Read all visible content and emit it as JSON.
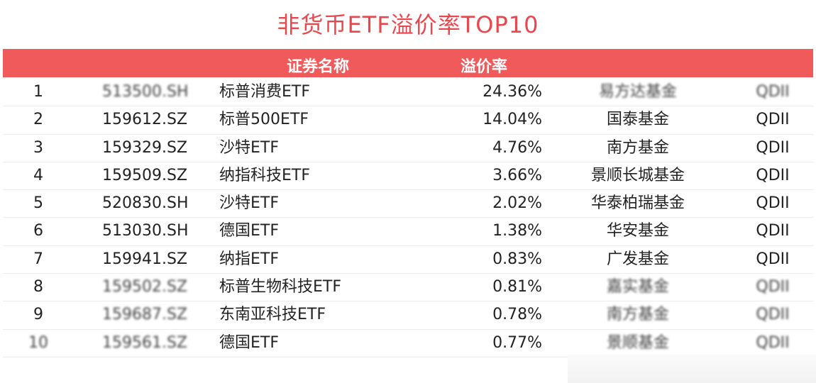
{
  "title": "非货币ETF溢价率TOP10",
  "header": {
    "name_label": "证券名称",
    "rate_label": "溢价率"
  },
  "chart_data": {
    "type": "table",
    "title": "非货币ETF溢价率TOP10",
    "columns": [
      "",
      "",
      "证券名称",
      "溢价率",
      "",
      ""
    ],
    "rows": [
      {
        "rank": "1",
        "code": "513500.SH",
        "name": "标普消费ETF",
        "rate": "24.36%",
        "company": "易方达基金",
        "category": "QDII"
      },
      {
        "rank": "2",
        "code": "159612.SZ",
        "name": "标普500ETF",
        "rate": "14.04%",
        "company": "国泰基金",
        "category": "QDII"
      },
      {
        "rank": "3",
        "code": "159329.SZ",
        "name": "沙特ETF",
        "rate": "4.76%",
        "company": "南方基金",
        "category": "QDII"
      },
      {
        "rank": "4",
        "code": "159509.SZ",
        "name": "纳指科技ETF",
        "rate": "3.66%",
        "company": "景顺长城基金",
        "category": "QDII"
      },
      {
        "rank": "5",
        "code": "520830.SH",
        "name": "沙特ETF",
        "rate": "2.02%",
        "company": "华泰柏瑞基金",
        "category": "QDII"
      },
      {
        "rank": "6",
        "code": "513030.SH",
        "name": "德国ETF",
        "rate": "1.38%",
        "company": "华安基金",
        "category": "QDII"
      },
      {
        "rank": "7",
        "code": "159941.SZ",
        "name": "纳指ETF",
        "rate": "0.83%",
        "company": "广发基金",
        "category": "QDII"
      },
      {
        "rank": "8",
        "code": "159502.SZ",
        "name": "标普生物科技ETF",
        "rate": "0.81%",
        "company": "嘉实基金",
        "category": "QDII"
      },
      {
        "rank": "9",
        "code": "159687.SZ",
        "name": "东南亚科技ETF",
        "rate": "0.78%",
        "company": "南方基金",
        "category": "QDII"
      },
      {
        "rank": "10",
        "code": "159561.SZ",
        "name": "德国ETF",
        "rate": "0.77%",
        "company": "景顺基金",
        "category": "QDII"
      }
    ]
  }
}
